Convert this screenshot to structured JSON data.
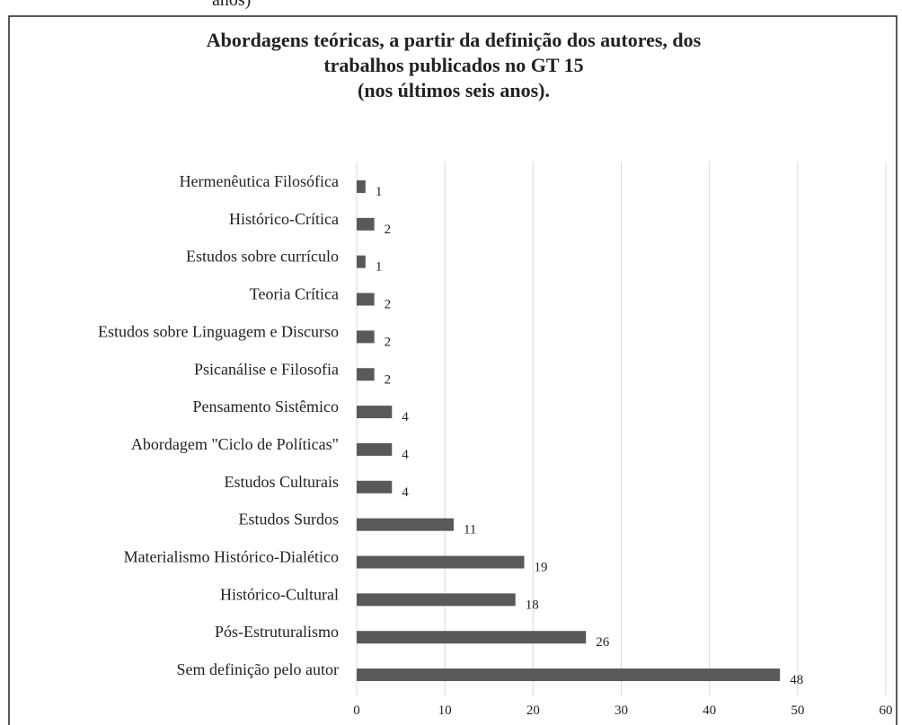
{
  "caption_fragment": "anos)",
  "chart_data": {
    "type": "barh",
    "title": [
      "Abordagens teóricas, a partir da definição dos autores, dos",
      "trabalhos publicados no GT 15",
      "(nos últimos seis anos)."
    ],
    "categories": [
      "Hermenêutica Filosófica",
      "Histórico-Crítica",
      "Estudos sobre currículo",
      "Teoria Crítica",
      "Estudos sobre Linguagem e Discurso",
      "Psicanálise e Filosofia",
      "Pensamento Sistêmico",
      "Abordagem \"Ciclo de Políticas\"",
      "Estudos Culturais",
      "Estudos Surdos",
      "Materialismo Histórico-Dialético",
      "Histórico-Cultural",
      "Pós-Estruturalismo",
      "Sem definição pelo autor"
    ],
    "values": [
      1,
      2,
      1,
      2,
      2,
      2,
      4,
      4,
      4,
      11,
      19,
      18,
      26,
      48
    ],
    "color": "#595959",
    "xlim": [
      0,
      60
    ],
    "xticks": [
      0,
      10,
      20,
      30,
      40,
      50,
      60
    ],
    "grid": true
  }
}
